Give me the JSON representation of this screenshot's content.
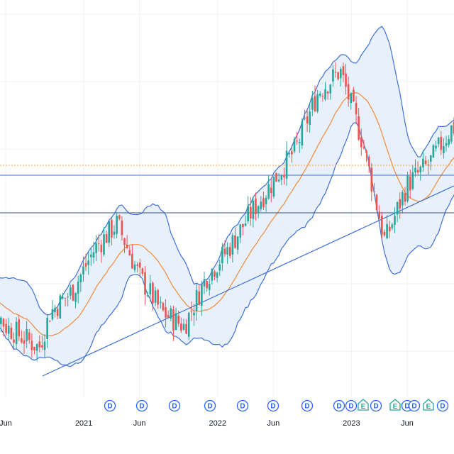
{
  "chart_data": {
    "type": "candlestick",
    "x_tick_labels": [
      "Jun",
      "2021",
      "Jun",
      "2022",
      "Jun",
      "2023",
      "Jun"
    ],
    "x_ticks": [
      {
        "label": "Jun",
        "date": "2020-06"
      },
      {
        "label": "2021",
        "date": "2021-01"
      },
      {
        "label": "Jun",
        "date": "2021-06"
      },
      {
        "label": "2022",
        "date": "2022-01"
      },
      {
        "label": "Jun",
        "date": "2022-06"
      },
      {
        "label": "2023",
        "date": "2023-01"
      },
      {
        "label": "Jun",
        "date": "2023-06"
      }
    ],
    "price_trend_approx": [
      {
        "date": "2020-04",
        "close": 0.66
      },
      {
        "date": "2020-06",
        "close": 0.56
      },
      {
        "date": "2020-09",
        "close": 0.5
      },
      {
        "date": "2020-10",
        "close": 0.6
      },
      {
        "date": "2020-12",
        "close": 0.66
      },
      {
        "date": "2021-02",
        "close": 0.78
      },
      {
        "date": "2021-04",
        "close": 0.85
      },
      {
        "date": "2021-06",
        "close": 0.7
      },
      {
        "date": "2021-08",
        "close": 0.6
      },
      {
        "date": "2021-10",
        "close": 0.56
      },
      {
        "date": "2021-12",
        "close": 0.7
      },
      {
        "date": "2022-02",
        "close": 0.78
      },
      {
        "date": "2022-04",
        "close": 0.88
      },
      {
        "date": "2022-06",
        "close": 0.97
      },
      {
        "date": "2022-08",
        "close": 1.06
      },
      {
        "date": "2022-10",
        "close": 1.22
      },
      {
        "date": "2022-12",
        "close": 1.28
      },
      {
        "date": "2023-02",
        "close": 1.08
      },
      {
        "date": "2023-04",
        "close": 0.8
      },
      {
        "date": "2023-06",
        "close": 0.96
      },
      {
        "date": "2023-08",
        "close": 1.02
      },
      {
        "date": "2023-10",
        "close": 1.12
      }
    ],
    "indicators": [
      "Bollinger Bands",
      "Moving average"
    ],
    "horizontal_levels": 2,
    "trendline": {
      "from": "2020-09",
      "to": "2023-10"
    },
    "grid": true,
    "event_markers": [
      "D",
      "D",
      "D",
      "D",
      "D",
      "D",
      "D",
      "D",
      "D",
      "E",
      "D",
      "E",
      "D",
      "D",
      "E",
      "D"
    ],
    "colors": {
      "up": "#26a69a",
      "down": "#ef5350",
      "band_line": "#3f6fd8",
      "band_fill": "#e8f1fb",
      "ma_line": "#f08a3c",
      "level_line": "#3f6fd8",
      "dotted_level": "#f0a05a",
      "dividend_marker": "#2962ff",
      "earnings_marker": "#26a69a",
      "grid": "#eef0f4"
    }
  }
}
